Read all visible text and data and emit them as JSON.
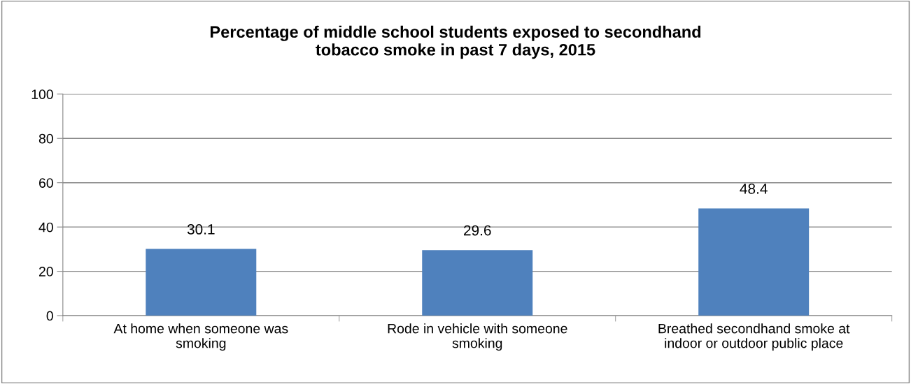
{
  "chart_data": {
    "type": "bar",
    "title": "Percentage of middle school students exposed to secondhand\ntobacco smoke in past 7 days, 2015",
    "categories": [
      "At home when someone was\nsmoking",
      "Rode in vehicle with someone\nsmoking",
      "Breathed secondhand smoke at\nindoor or outdoor public place"
    ],
    "values": [
      30.1,
      29.6,
      48.4
    ],
    "color": "#4f81bd",
    "ylim": [
      0,
      100
    ],
    "yticks": [
      0,
      20,
      40,
      60,
      80,
      100
    ],
    "grid": "y",
    "data_labels": true,
    "legend": false
  }
}
